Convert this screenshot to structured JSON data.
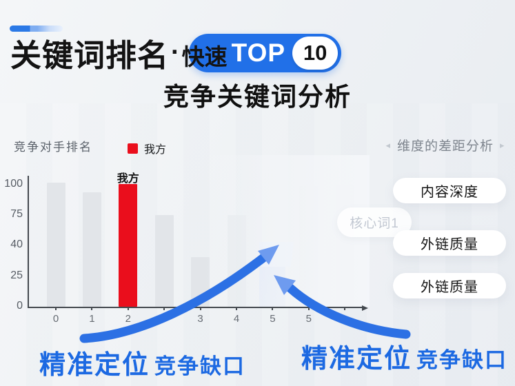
{
  "header": {
    "title_main": "关键词排名",
    "title_separator": "·",
    "title_qualifier": "快速",
    "badge_text": "TOP",
    "badge_number": "10",
    "subtitle": "竞争关键词分析"
  },
  "chart": {
    "axis_title": "竞争对手排名",
    "legend_label": "我方",
    "our_bar_label": "我方",
    "floating_tag": "核心词1"
  },
  "chart_data": {
    "type": "bar",
    "title": "竞争对手排名",
    "categories": [
      "0",
      "1",
      "2",
      "",
      "3",
      "4",
      "5",
      "5",
      ""
    ],
    "values": [
      100,
      92,
      99,
      74,
      40,
      74,
      52,
      97,
      98
    ],
    "styles": [
      "muted",
      "muted",
      "ours",
      "muted",
      "muted",
      "muted-fade",
      "gap",
      "faint",
      "ghost"
    ],
    "highlight_index": 2,
    "highlight_label": "我方",
    "y_ticks": [
      "100",
      "75",
      "40",
      "25",
      "0"
    ],
    "ylim": [
      0,
      100
    ],
    "legend": [
      "我方"
    ],
    "legend_position": "top",
    "grid": false
  },
  "panel": {
    "heading": "维度的差距分析",
    "prev_icon": "◂",
    "next_icon": "▸",
    "items": [
      {
        "label": "内容深度"
      },
      {
        "label": "外链质量"
      },
      {
        "label": "外链质量"
      }
    ]
  },
  "callouts": {
    "left": {
      "emphasis": "精准定位",
      "text": "竞争缺口"
    },
    "right": {
      "emphasis": "精准定位",
      "text": "竞争缺口"
    }
  },
  "colors": {
    "accent_blue": "#2170e8",
    "our_red": "#ea0e1c",
    "callout_blue": "#1c69e2",
    "arrow_blue": "#2c70e4",
    "arrowhead_blue": "#6e9bef"
  }
}
